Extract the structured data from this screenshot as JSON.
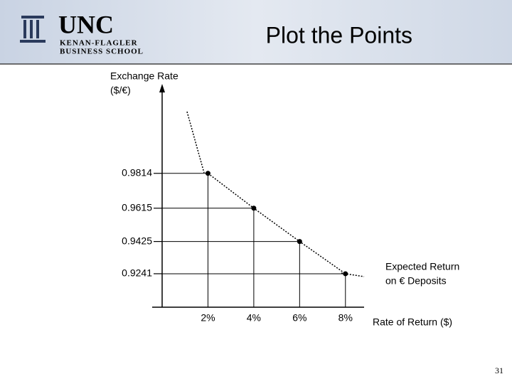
{
  "header": {
    "logo": "UNC",
    "school": [
      "KENAN-FLAGLER",
      "BUSINESS SCHOOL"
    ]
  },
  "page_number": "31",
  "chart_data": {
    "type": "scatter",
    "title": "Plot the Points",
    "ylabel": [
      "Exchange Rate",
      "($/€)"
    ],
    "xlabel": "Rate of Return ($)",
    "annotation": [
      "Expected Return",
      "on € Deposits"
    ],
    "x": [
      2,
      4,
      6,
      8
    ],
    "values": [
      0.9814,
      0.9615,
      0.9425,
      0.9241
    ],
    "color": "#000000",
    "xlim": [
      0,
      9
    ],
    "xticks": [
      {
        "value": 2,
        "label": "2%"
      },
      {
        "value": 4,
        "label": "4%"
      },
      {
        "value": 6,
        "label": "6%"
      },
      {
        "value": 8,
        "label": "8%"
      }
    ],
    "ylim": [
      0.905,
      1.03
    ],
    "yticks": [
      0.9814,
      0.9615,
      0.9425,
      0.9241
    ]
  }
}
